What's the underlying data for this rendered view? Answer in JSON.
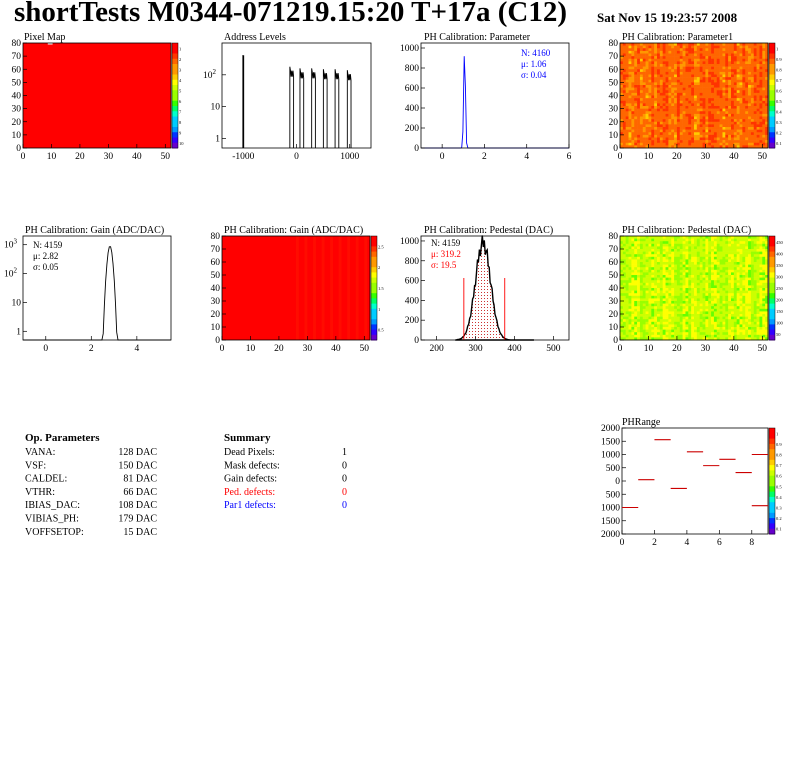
{
  "header": {
    "title": "shortTests M0344-071219.15:20 T+17a (C12)",
    "timestamp": "Sat Nov 15 19:23:57 2008"
  },
  "colors": {
    "hist_line": "#000000",
    "fit_blue": "#0000ff",
    "fit_red": "#ff0000",
    "map_red": "#ff0000"
  },
  "op_parameters": {
    "title": "Op. Parameters",
    "rows": [
      {
        "name": "VANA:",
        "value": "128 DAC"
      },
      {
        "name": "VSF:",
        "value": "150 DAC"
      },
      {
        "name": "CALDEL:",
        "value": "81 DAC"
      },
      {
        "name": "VTHR:",
        "value": "66 DAC"
      },
      {
        "name": "IBIAS_DAC:",
        "value": "108 DAC"
      },
      {
        "name": "VIBIAS_PH:",
        "value": "179 DAC"
      },
      {
        "name": "VOFFSETOP:",
        "value": "15 DAC"
      }
    ]
  },
  "summary": {
    "title": "Summary",
    "rows": [
      {
        "name": "Dead Pixels:",
        "value": "1",
        "color": "#000000"
      },
      {
        "name": "Mask defects:",
        "value": "0",
        "color": "#000000"
      },
      {
        "name": "Gain defects:",
        "value": "0",
        "color": "#000000"
      },
      {
        "name": "Ped. defects:",
        "value": "0",
        "color": "#ff0000"
      },
      {
        "name": "Par1 defects:",
        "value": "0",
        "color": "#0000ff"
      }
    ]
  },
  "chart_data": [
    {
      "id": "pixel-map",
      "type": "heatmap",
      "title": "Pixel Map",
      "xlim": [
        0,
        52
      ],
      "ylim": [
        0,
        80
      ],
      "xticks": [
        "0",
        "10",
        "20",
        "30",
        "40",
        "50"
      ],
      "yticks": [
        "0",
        "10",
        "20",
        "30",
        "40",
        "50",
        "60",
        "70",
        "80"
      ],
      "zticks": [
        "1",
        "2",
        "3",
        "4",
        "5",
        "6",
        "7",
        "8",
        "9",
        "10"
      ],
      "fill": "uniform",
      "level": 10,
      "dead_pixels": [
        [
          8,
          79
        ]
      ]
    },
    {
      "id": "address-levels",
      "type": "line",
      "title": "Address Levels",
      "log_y": true,
      "xlim": [
        -1400,
        1400
      ],
      "ylim": [
        0.5,
        1000
      ],
      "xticks": [
        "-1000",
        "0",
        "1000"
      ],
      "yticks": [
        "1",
        "10",
        "10^2"
      ],
      "peaks": [
        {
          "x": -1000,
          "height": 400
        },
        {
          "x": -90,
          "height": 180
        },
        {
          "x": 100,
          "height": 160
        },
        {
          "x": 320,
          "height": 160
        },
        {
          "x": 540,
          "height": 150
        },
        {
          "x": 760,
          "height": 150
        },
        {
          "x": 990,
          "height": 140
        }
      ]
    },
    {
      "id": "ph-cal-parameter",
      "type": "line",
      "title": "PH Calibration: Parameter",
      "xlim": [
        -1,
        6
      ],
      "ylim": [
        0,
        1050
      ],
      "xticks": [
        "0",
        "2",
        "4",
        "6"
      ],
      "yticks": [
        "0",
        "200",
        "400",
        "600",
        "800",
        "1000"
      ],
      "stats": {
        "N": "N: 4160",
        "mean": "μ: 1.06",
        "sigma": "σ: 0.04"
      },
      "peak": {
        "mean": 1.06,
        "sigma": 0.04,
        "max": 1020
      }
    },
    {
      "id": "ph-cal-parameter1",
      "type": "heatmap",
      "title": "PH Calibration: Parameter1",
      "xlim": [
        0,
        52
      ],
      "ylim": [
        0,
        80
      ],
      "xticks": [
        "0",
        "10",
        "20",
        "30",
        "40",
        "50"
      ],
      "yticks": [
        "0",
        "10",
        "20",
        "30",
        "40",
        "50",
        "60",
        "70",
        "80"
      ],
      "zticks": [
        "1",
        "0.9",
        "0.8",
        "0.7",
        "0.6",
        "0.5",
        "0.4",
        "0.3",
        "0.2",
        "0.1"
      ],
      "fill": "orange-red noise",
      "level_range": [
        0.6,
        1.0
      ]
    },
    {
      "id": "ph-cal-gain-hist",
      "type": "line",
      "title": "PH Calibration: Gain (ADC/DAC)",
      "log_y": true,
      "xlim": [
        -1,
        5.5
      ],
      "ylim": [
        0.5,
        2000
      ],
      "xticks": [
        "0",
        "2",
        "4"
      ],
      "yticks": [
        "1",
        "10",
        "10^2",
        "10^3"
      ],
      "stats": {
        "N": "N: 4159",
        "mean": "μ: 2.82",
        "sigma": "σ: 0.05"
      },
      "peak": {
        "mean": 2.82,
        "sigma": 0.05,
        "max": 900
      }
    },
    {
      "id": "ph-cal-gain-map",
      "type": "heatmap",
      "title": "PH Calibration: Gain (ADC/DAC)",
      "xlim": [
        0,
        52
      ],
      "ylim": [
        0,
        80
      ],
      "xticks": [
        "0",
        "10",
        "20",
        "30",
        "40",
        "50"
      ],
      "yticks": [
        "0",
        "10",
        "20",
        "30",
        "40",
        "50",
        "60",
        "70",
        "80"
      ],
      "zticks": [
        "2.5",
        "2",
        "1.5",
        "1",
        "0.5"
      ],
      "fill": "red uniform",
      "level": 2.82
    },
    {
      "id": "ph-cal-pedestal-hist",
      "type": "line",
      "title": "PH Calibration: Pedestal (DAC)",
      "xlim": [
        160,
        540
      ],
      "ylim": [
        0,
        1050
      ],
      "xticks": [
        "200",
        "300",
        "400",
        "500"
      ],
      "yticks": [
        "0",
        "200",
        "400",
        "600",
        "800",
        "1000"
      ],
      "stats": {
        "N": "N: 4159",
        "mean": "μ: 319.2",
        "sigma": "σ: 19.5"
      },
      "peak": {
        "mean": 319.2,
        "sigma": 19.5,
        "max": 1000
      },
      "cut_lines": [
        270,
        375
      ]
    },
    {
      "id": "ph-cal-pedestal-map",
      "type": "heatmap",
      "title": "PH Calibration: Pedestal (DAC)",
      "xlim": [
        0,
        52
      ],
      "ylim": [
        0,
        80
      ],
      "xticks": [
        "0",
        "10",
        "20",
        "30",
        "40",
        "50"
      ],
      "yticks": [
        "0",
        "10",
        "20",
        "30",
        "40",
        "50",
        "60",
        "70",
        "80"
      ],
      "zticks": [
        "450",
        "400",
        "350",
        "300",
        "250",
        "200",
        "150",
        "100",
        "50"
      ],
      "fill": "green-yellow noise",
      "level_range": [
        290,
        350
      ]
    },
    {
      "id": "ph-range",
      "type": "scatter",
      "title": "PHRange",
      "xlim": [
        0,
        9
      ],
      "ylim": [
        -2000,
        2000
      ],
      "xticks": [
        "0",
        "2",
        "4",
        "6",
        "8"
      ],
      "yticks": [
        "2000",
        "1500",
        "1000",
        "500",
        "0",
        "500",
        "1000",
        "1500",
        "2000"
      ],
      "zticks": [
        "1",
        "0.9",
        "0.8",
        "0.7",
        "0.6",
        "0.5",
        "0.4",
        "0.3",
        "0.2",
        "0.1"
      ],
      "segments": [
        {
          "x": 0,
          "y": -1000
        },
        {
          "x": 1,
          "y": 50
        },
        {
          "x": 2,
          "y": 1560
        },
        {
          "x": 3,
          "y": -280
        },
        {
          "x": 4,
          "y": 1100
        },
        {
          "x": 5,
          "y": 580
        },
        {
          "x": 6,
          "y": 820
        },
        {
          "x": 7,
          "y": 320
        },
        {
          "x": 8,
          "y": 1000
        },
        {
          "x": 8,
          "y": -930
        }
      ]
    }
  ]
}
